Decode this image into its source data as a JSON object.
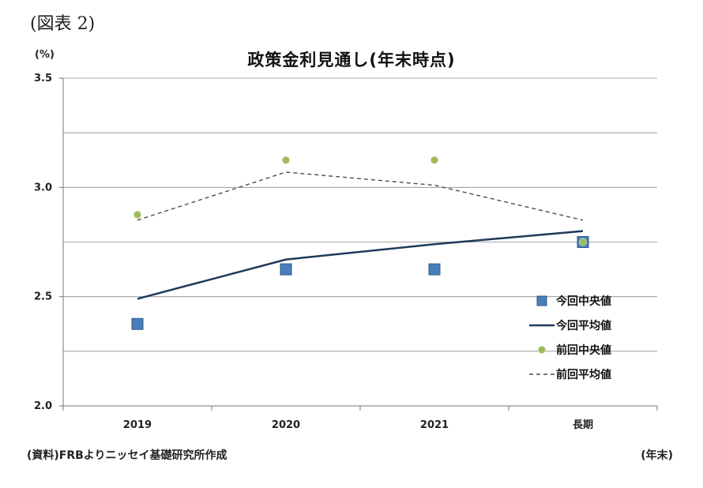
{
  "header": {
    "figure_label": "(図表 2)",
    "unit_label": "(%)"
  },
  "footer": {
    "source": "(資料)FRBよりニッセイ基礎研究所作成",
    "x_unit": "(年末)"
  },
  "chart_data": {
    "type": "line",
    "title": "政策金利見通し(年末時点)",
    "xlabel": "",
    "ylabel": "",
    "categories": [
      "2019",
      "2020",
      "2021",
      "長期"
    ],
    "ylim": [
      2.0,
      3.5
    ],
    "yticks": [
      "2.0",
      "2.5",
      "3.0",
      "3.5"
    ],
    "grid": true,
    "legend_position": "bottom-right",
    "series": [
      {
        "name": "今回中央値",
        "kind": "marker-square",
        "color": "#4a7ebb",
        "values": [
          2.375,
          2.625,
          2.625,
          2.75
        ]
      },
      {
        "name": "今回平均値",
        "kind": "line-solid",
        "color": "#1f3a5a",
        "values": [
          2.49,
          2.67,
          2.74,
          2.8
        ]
      },
      {
        "name": "前回中央値",
        "kind": "marker-circle",
        "color": "#9bbb59",
        "values": [
          2.875,
          3.125,
          3.125,
          2.75
        ]
      },
      {
        "name": "前回平均値",
        "kind": "line-dashed",
        "color": "#4f4f3f",
        "values": [
          2.85,
          3.07,
          3.01,
          2.85
        ]
      }
    ]
  }
}
